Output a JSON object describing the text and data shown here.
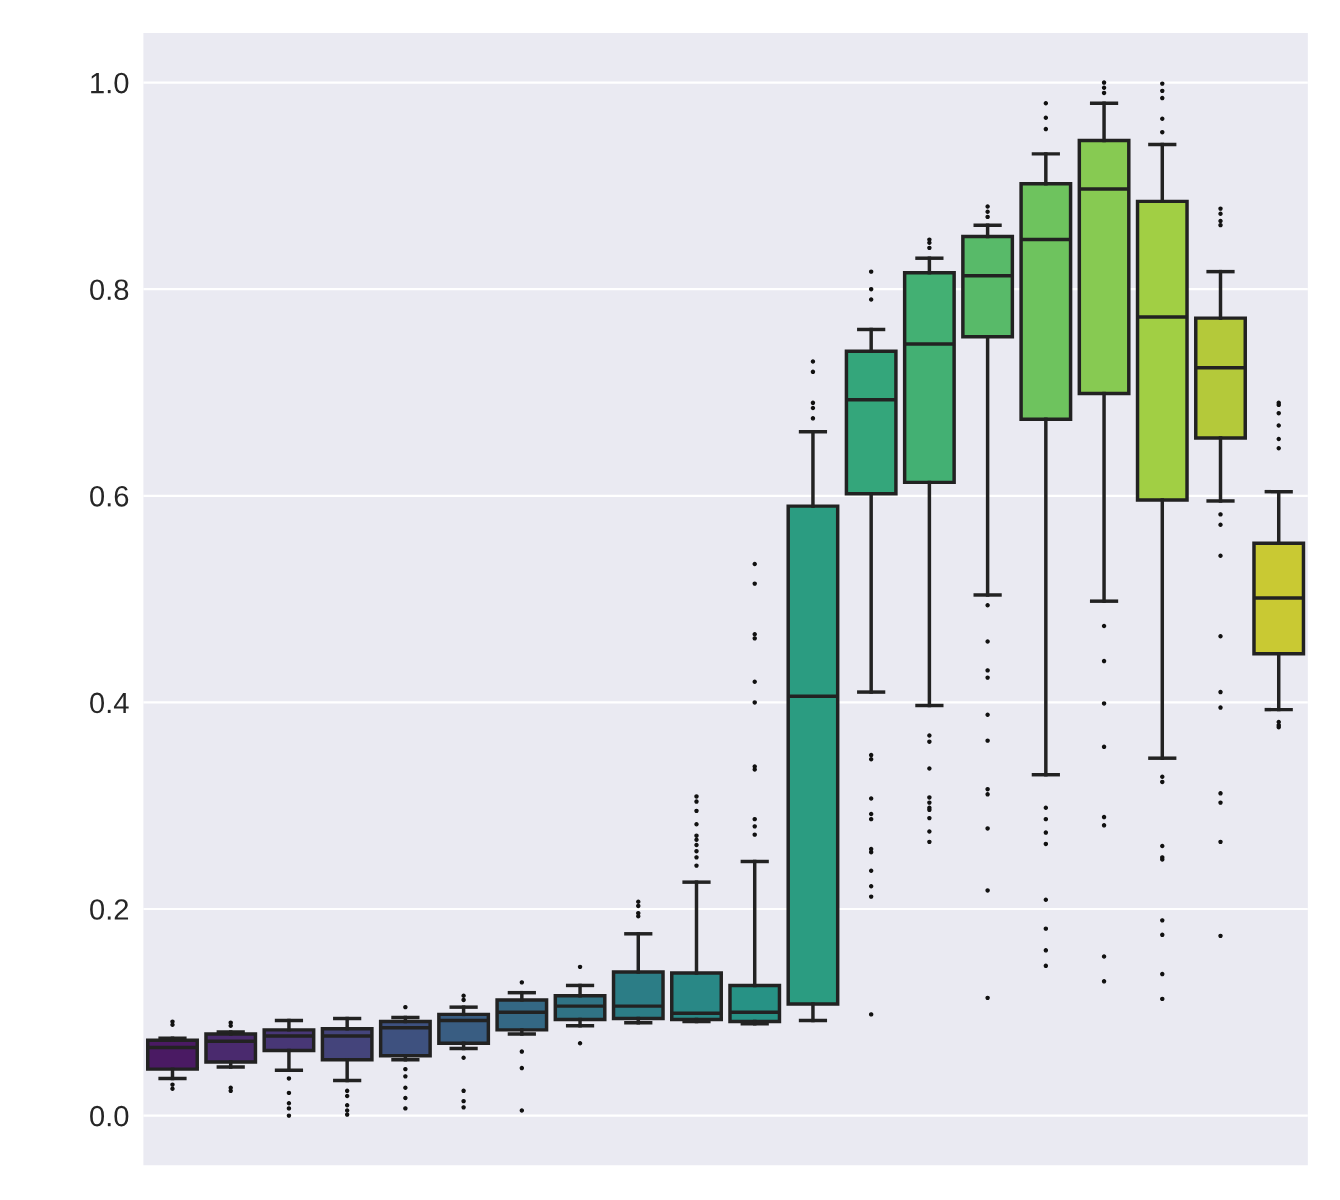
{
  "chart_data": {
    "type": "box",
    "categories": [
      null,
      null,
      null,
      null,
      null,
      null,
      null,
      null,
      null,
      null,
      null,
      null,
      null,
      null,
      null,
      null,
      null,
      null,
      null,
      null
    ],
    "colors": [
      "#4a1a63",
      "#4a2a6e",
      "#483776",
      "#44447b",
      "#3e517f",
      "#395d82",
      "#346884",
      "#307385",
      "#2c7d86",
      "#298886",
      "#279285",
      "#2b9c81",
      "#34a67b",
      "#43b073",
      "#58ba69",
      "#6ec35e",
      "#87ca52",
      "#a1cf44",
      "#b4c93a",
      "#c9c933"
    ],
    "boxes": [
      {
        "low": 0.036,
        "q1": 0.045,
        "median": 0.066,
        "q3": 0.073,
        "high": 0.075,
        "outliers": [
          0.091,
          0.088,
          0.026,
          0.03
        ]
      },
      {
        "low": 0.047,
        "q1": 0.052,
        "median": 0.072,
        "q3": 0.079,
        "high": 0.081,
        "outliers": [
          0.09,
          0.087,
          0.024,
          0.027
        ]
      },
      {
        "low": 0.044,
        "q1": 0.063,
        "median": 0.077,
        "q3": 0.083,
        "high": 0.092,
        "outliers": [
          0.036,
          0.022,
          0.012,
          0.007,
          0.0
        ]
      },
      {
        "low": 0.034,
        "q1": 0.054,
        "median": 0.077,
        "q3": 0.084,
        "high": 0.094,
        "outliers": [
          0.024,
          0.019,
          0.01,
          0.005,
          0.001
        ]
      },
      {
        "low": 0.054,
        "q1": 0.058,
        "median": 0.085,
        "q3": 0.091,
        "high": 0.095,
        "outliers": [
          0.105,
          0.045,
          0.038,
          0.027,
          0.017,
          0.007
        ]
      },
      {
        "low": 0.065,
        "q1": 0.07,
        "median": 0.092,
        "q3": 0.098,
        "high": 0.105,
        "outliers": [
          0.116,
          0.112,
          0.056,
          0.024,
          0.014,
          0.008
        ]
      },
      {
        "low": 0.079,
        "q1": 0.083,
        "median": 0.1,
        "q3": 0.112,
        "high": 0.119,
        "outliers": [
          0.129,
          0.062,
          0.046,
          0.005
        ]
      },
      {
        "low": 0.087,
        "q1": 0.093,
        "median": 0.106,
        "q3": 0.116,
        "high": 0.126,
        "outliers": [
          0.144,
          0.07
        ]
      },
      {
        "low": 0.09,
        "q1": 0.094,
        "median": 0.106,
        "q3": 0.139,
        "high": 0.176,
        "outliers": [
          0.207,
          0.203,
          0.196,
          0.193
        ]
      },
      {
        "low": 0.091,
        "q1": 0.093,
        "median": 0.099,
        "q3": 0.138,
        "high": 0.226,
        "outliers": [
          0.309,
          0.304,
          0.295,
          0.282,
          0.271,
          0.267,
          0.262,
          0.256,
          0.25,
          0.242
        ]
      },
      {
        "low": 0.089,
        "q1": 0.091,
        "median": 0.1,
        "q3": 0.126,
        "high": 0.246,
        "outliers": [
          0.534,
          0.515,
          0.466,
          0.462,
          0.42,
          0.4,
          0.338,
          0.335,
          0.287,
          0.28,
          0.272
        ]
      },
      {
        "low": 0.092,
        "q1": 0.108,
        "median": 0.406,
        "q3": 0.59,
        "high": 0.662,
        "outliers": [
          0.73,
          0.72,
          0.69,
          0.685,
          0.675
        ]
      },
      {
        "low": 0.41,
        "q1": 0.602,
        "median": 0.693,
        "q3": 0.74,
        "high": 0.761,
        "outliers": [
          0.817,
          0.8,
          0.79,
          0.349,
          0.345,
          0.307,
          0.292,
          0.287,
          0.258,
          0.255,
          0.237,
          0.222,
          0.212,
          0.098
        ]
      },
      {
        "low": 0.397,
        "q1": 0.613,
        "median": 0.747,
        "q3": 0.816,
        "high": 0.83,
        "outliers": [
          0.848,
          0.845,
          0.84,
          0.368,
          0.362,
          0.336,
          0.308,
          0.303,
          0.298,
          0.296,
          0.288,
          0.275,
          0.265
        ]
      },
      {
        "low": 0.504,
        "q1": 0.754,
        "median": 0.813,
        "q3": 0.851,
        "high": 0.862,
        "outliers": [
          0.88,
          0.875,
          0.87,
          0.494,
          0.459,
          0.431,
          0.424,
          0.388,
          0.363,
          0.316,
          0.311,
          0.278,
          0.218,
          0.114
        ]
      },
      {
        "low": 0.33,
        "q1": 0.674,
        "median": 0.848,
        "q3": 0.902,
        "high": 0.931,
        "outliers": [
          0.98,
          0.966,
          0.955,
          0.298,
          0.287,
          0.274,
          0.263,
          0.209,
          0.181,
          0.16,
          0.145
        ]
      },
      {
        "low": 0.498,
        "q1": 0.699,
        "median": 0.897,
        "q3": 0.944,
        "high": 0.98,
        "outliers": [
          1.0,
          0.995,
          0.99,
          0.474,
          0.44,
          0.399,
          0.357,
          0.289,
          0.281,
          0.154,
          0.13
        ]
      },
      {
        "low": 0.346,
        "q1": 0.596,
        "median": 0.773,
        "q3": 0.885,
        "high": 0.94,
        "outliers": [
          0.999,
          0.992,
          0.985,
          0.965,
          0.952,
          0.328,
          0.323,
          0.261,
          0.25,
          0.248,
          0.189,
          0.175,
          0.137,
          0.113
        ]
      },
      {
        "low": 0.595,
        "q1": 0.656,
        "median": 0.724,
        "q3": 0.772,
        "high": 0.817,
        "outliers": [
          0.878,
          0.873,
          0.866,
          0.862,
          0.582,
          0.572,
          0.542,
          0.464,
          0.41,
          0.395,
          0.312,
          0.303,
          0.265,
          0.174
        ]
      },
      {
        "low": 0.393,
        "q1": 0.447,
        "median": 0.501,
        "q3": 0.554,
        "high": 0.604,
        "outliers": [
          0.69,
          0.688,
          0.68,
          0.668,
          0.655,
          0.646,
          0.381,
          0.378,
          0.376
        ]
      }
    ],
    "ylim": [
      -0.048,
      1.048
    ],
    "yticks": [
      {
        "value": 0,
        "label": "0.0"
      },
      {
        "value": 0.2,
        "label": "0.2"
      },
      {
        "value": 0.4,
        "label": "0.4"
      },
      {
        "value": 0.6,
        "label": "0.6"
      },
      {
        "value": 0.8,
        "label": "0.8"
      },
      {
        "value": 1.0,
        "label": "1.0"
      }
    ],
    "grid": "y",
    "tick_labels": "y"
  }
}
